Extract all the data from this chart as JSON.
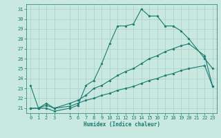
{
  "line1_x": [
    0,
    1,
    2,
    3,
    5,
    6,
    7,
    8,
    9,
    10,
    11,
    12,
    13,
    14,
    15,
    16,
    17,
    18,
    19,
    20,
    22,
    23
  ],
  "line1_y": [
    23.3,
    21.0,
    21.0,
    20.7,
    21.0,
    21.3,
    23.3,
    23.8,
    25.5,
    27.5,
    29.3,
    29.3,
    29.5,
    31.0,
    30.3,
    30.3,
    29.3,
    29.3,
    28.8,
    28.0,
    26.0,
    25.0
  ],
  "line2_x": [
    0,
    1,
    2,
    3,
    5,
    6,
    7,
    8,
    9,
    10,
    11,
    12,
    13,
    14,
    15,
    16,
    17,
    18,
    19,
    20,
    22,
    23
  ],
  "line2_y": [
    21.0,
    21.0,
    21.5,
    21.0,
    21.5,
    21.8,
    22.3,
    23.0,
    23.3,
    23.8,
    24.3,
    24.7,
    25.0,
    25.5,
    26.0,
    26.3,
    26.7,
    27.0,
    27.3,
    27.5,
    26.3,
    23.2
  ],
  "line3_x": [
    0,
    1,
    2,
    3,
    5,
    6,
    7,
    8,
    9,
    10,
    11,
    12,
    13,
    14,
    15,
    16,
    17,
    18,
    19,
    20,
    22,
    23
  ],
  "line3_y": [
    21.0,
    21.0,
    21.3,
    21.0,
    21.2,
    21.5,
    21.8,
    22.0,
    22.3,
    22.5,
    22.8,
    23.0,
    23.2,
    23.5,
    23.8,
    24.0,
    24.3,
    24.5,
    24.8,
    25.0,
    25.3,
    23.2
  ],
  "line_color": "#1a7a6e",
  "bg_color": "#c8e8e0",
  "grid_color": "#aacfca",
  "xlabel": "Humidex (Indice chaleur)",
  "xlabel_fontsize": 5.5,
  "tick_fontsize": 5.0,
  "ylim": [
    20.5,
    31.5
  ],
  "xlim": [
    -0.5,
    23.5
  ],
  "yticks": [
    21,
    22,
    23,
    24,
    25,
    26,
    27,
    28,
    29,
    30,
    31
  ],
  "xticks": [
    0,
    1,
    2,
    3,
    5,
    6,
    7,
    8,
    9,
    10,
    11,
    12,
    13,
    14,
    15,
    16,
    17,
    18,
    19,
    20,
    21,
    22,
    23
  ],
  "marker": "*",
  "markersize": 2.5,
  "linewidth": 0.8
}
